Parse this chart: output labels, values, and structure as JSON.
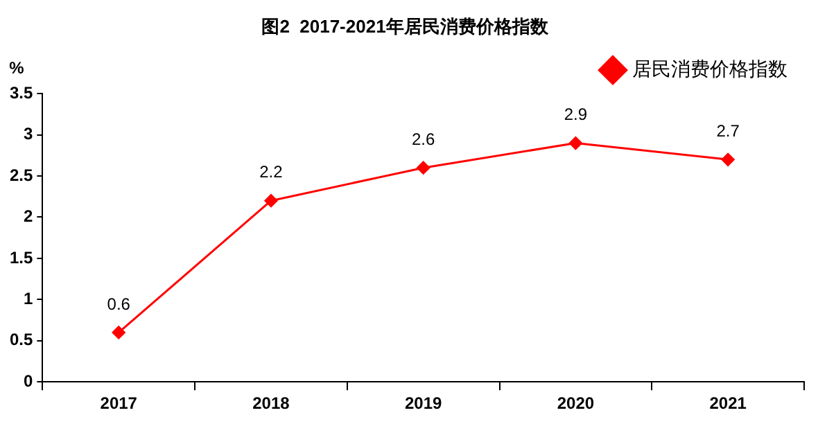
{
  "chart_data": {
    "type": "line",
    "title": "图2  2017-2021年居民消费价格指数",
    "ylabel": "%",
    "categories": [
      "2017",
      "2018",
      "2019",
      "2020",
      "2021"
    ],
    "series": [
      {
        "name": "居民消费价格指数",
        "color": "#ff0000",
        "values": [
          0.6,
          2.2,
          2.6,
          2.9,
          2.7
        ]
      }
    ],
    "ylim": [
      0,
      3.5
    ],
    "yticks": [
      0,
      0.5,
      1,
      1.5,
      2,
      2.5,
      3,
      3.5
    ],
    "grid": false,
    "legend": "top right",
    "marker": "diamond",
    "line_style": "solid",
    "data_labels": true
  }
}
